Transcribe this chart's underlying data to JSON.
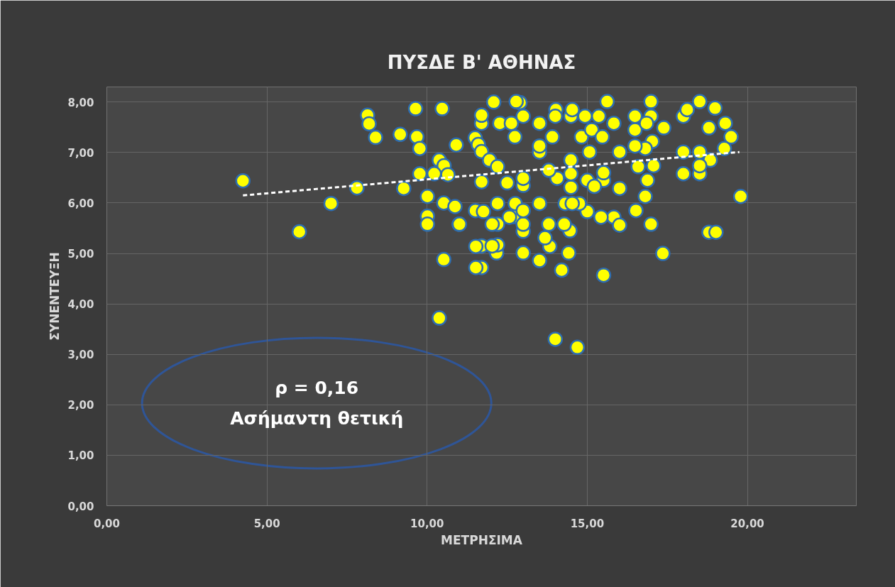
{
  "chart_data": {
    "type": "scatter",
    "title": "ΠΥΣΔΕ Β' ΑΘΗΝΑΣ",
    "xlabel": "ΜΕΤΡΗΣΙΜΑ",
    "ylabel": "ΣΥΝΕΝΤΕΥΞΗ",
    "annotations": [
      "ρ = 0,16\nΑσήμαντη θετική"
    ],
    "xlim": [
      0,
      23.4
    ],
    "ylim": [
      0,
      8.3
    ],
    "xticks": [
      {
        "value": 0,
        "label": "0,00"
      },
      {
        "value": 5,
        "label": "5,00"
      },
      {
        "value": 10,
        "label": "10,00"
      },
      {
        "value": 15,
        "label": "15,00"
      },
      {
        "value": 20,
        "label": "20,00"
      }
    ],
    "yticks": [
      {
        "value": 0,
        "label": "0,00"
      },
      {
        "value": 1,
        "label": "1,00"
      },
      {
        "value": 2,
        "label": "2,00"
      },
      {
        "value": 3,
        "label": "3,00"
      },
      {
        "value": 4,
        "label": "4,00"
      },
      {
        "value": 5,
        "label": "5,00"
      },
      {
        "value": 6,
        "label": "6,00"
      },
      {
        "value": 7,
        "label": "7,00"
      },
      {
        "value": 8,
        "label": "8,00"
      }
    ],
    "grid": true,
    "series": [
      {
        "color": "#ffff00",
        "marker": "circle",
        "x": [
          4.25,
          6.01,
          7.0,
          7.81,
          8.14,
          8.19,
          8.39,
          9.16,
          9.27,
          9.64,
          9.68,
          9.77,
          9.77,
          10.01,
          10.01,
          10.01,
          10.47,
          10.38,
          10.53,
          10.65,
          10.22,
          10.52,
          10.52,
          10.87,
          11.0,
          10.91,
          11.5,
          11.6,
          11.7,
          11.95,
          11.7,
          11.51,
          11.76,
          12.2,
          12.2,
          11.7,
          12.17,
          11.7,
          12.2,
          11.7,
          11.7,
          12.08,
          12.27,
          12.74,
          12.5,
          12.7,
          12.9,
          12.2,
          12.63,
          10.38,
          14.0,
          14.69,
          11.52,
          11.52,
          12.03,
          13.0,
          13.51,
          14.2,
          14.42,
          15.51,
          13.83,
          13.68,
          13.0,
          14.46,
          12.03,
          11.01,
          12.78,
          13.0,
          13.51,
          13.91,
          14.02,
          14.49,
          14.53,
          14.82,
          15.07,
          14.93,
          15.36,
          15.62,
          15.83,
          16.99,
          16.99,
          16.49,
          16.49,
          16.85,
          17.03,
          17.39,
          16.81,
          16.49,
          16.01,
          18.0,
          18.12,
          18.51,
          18.99,
          18.8,
          19.31,
          19.49,
          19.28,
          18.0,
          18.51,
          18.84,
          18.0,
          18.51,
          18.51,
          19.79,
          18.8,
          19.02,
          17.36,
          16.99,
          16.52,
          16.81,
          16.88,
          17.07,
          16.59,
          16.01,
          15.83,
          16.01,
          15.43,
          15.0,
          14.75,
          14.31,
          14.53,
          14.49,
          14.49,
          14.49,
          15.0,
          15.51,
          15.51,
          15.22,
          14.06,
          13.8,
          13.51,
          13.51,
          15.14,
          15.47,
          12.75,
          12.57,
          13.0,
          13.0,
          13.0,
          13.0,
          13.51,
          13.8,
          14.28,
          14.0
        ],
        "values": [
          6.44,
          5.43,
          5.99,
          6.3,
          7.74,
          7.57,
          7.3,
          7.36,
          6.29,
          7.87,
          7.31,
          7.08,
          6.58,
          6.13,
          5.74,
          5.58,
          7.87,
          6.85,
          6.74,
          6.56,
          6.58,
          4.88,
          6.0,
          5.93,
          5.58,
          7.15,
          7.29,
          7.16,
          7.02,
          6.85,
          6.42,
          5.85,
          5.83,
          5.99,
          5.58,
          5.15,
          5.01,
          4.72,
          5.17,
          7.58,
          7.74,
          8.0,
          7.58,
          7.31,
          6.4,
          5.73,
          7.99,
          6.72,
          7.58,
          3.72,
          3.3,
          3.14,
          4.72,
          5.14,
          5.15,
          5.01,
          4.86,
          4.67,
          5.01,
          4.57,
          5.14,
          5.31,
          5.44,
          5.45,
          5.58,
          5.58,
          8.01,
          7.72,
          7.58,
          7.31,
          7.85,
          7.72,
          7.85,
          7.31,
          7.01,
          7.72,
          7.72,
          8.01,
          7.58,
          8.01,
          7.72,
          7.72,
          7.45,
          7.58,
          7.22,
          7.49,
          7.08,
          7.13,
          7.01,
          7.72,
          7.85,
          8.01,
          7.88,
          7.49,
          7.58,
          7.31,
          7.08,
          7.01,
          7.01,
          6.85,
          6.58,
          6.58,
          6.74,
          6.13,
          5.42,
          5.42,
          5.0,
          5.58,
          5.85,
          6.13,
          6.45,
          6.74,
          6.72,
          6.29,
          5.72,
          5.56,
          5.72,
          5.83,
          5.99,
          5.99,
          5.99,
          6.31,
          6.58,
          6.85,
          6.45,
          6.45,
          6.6,
          6.33,
          6.49,
          6.65,
          7.01,
          7.13,
          7.45,
          7.31,
          5.99,
          5.72,
          5.58,
          5.85,
          6.35,
          6.49,
          5.99,
          5.58,
          5.58,
          7.72
        ]
      },
      {
        "type": "line",
        "color": "#ffffff",
        "line_style": "dashed",
        "marker": "none",
        "x": [
          4.25,
          19.75
        ],
        "values": [
          6.15,
          7.01
        ]
      }
    ]
  }
}
